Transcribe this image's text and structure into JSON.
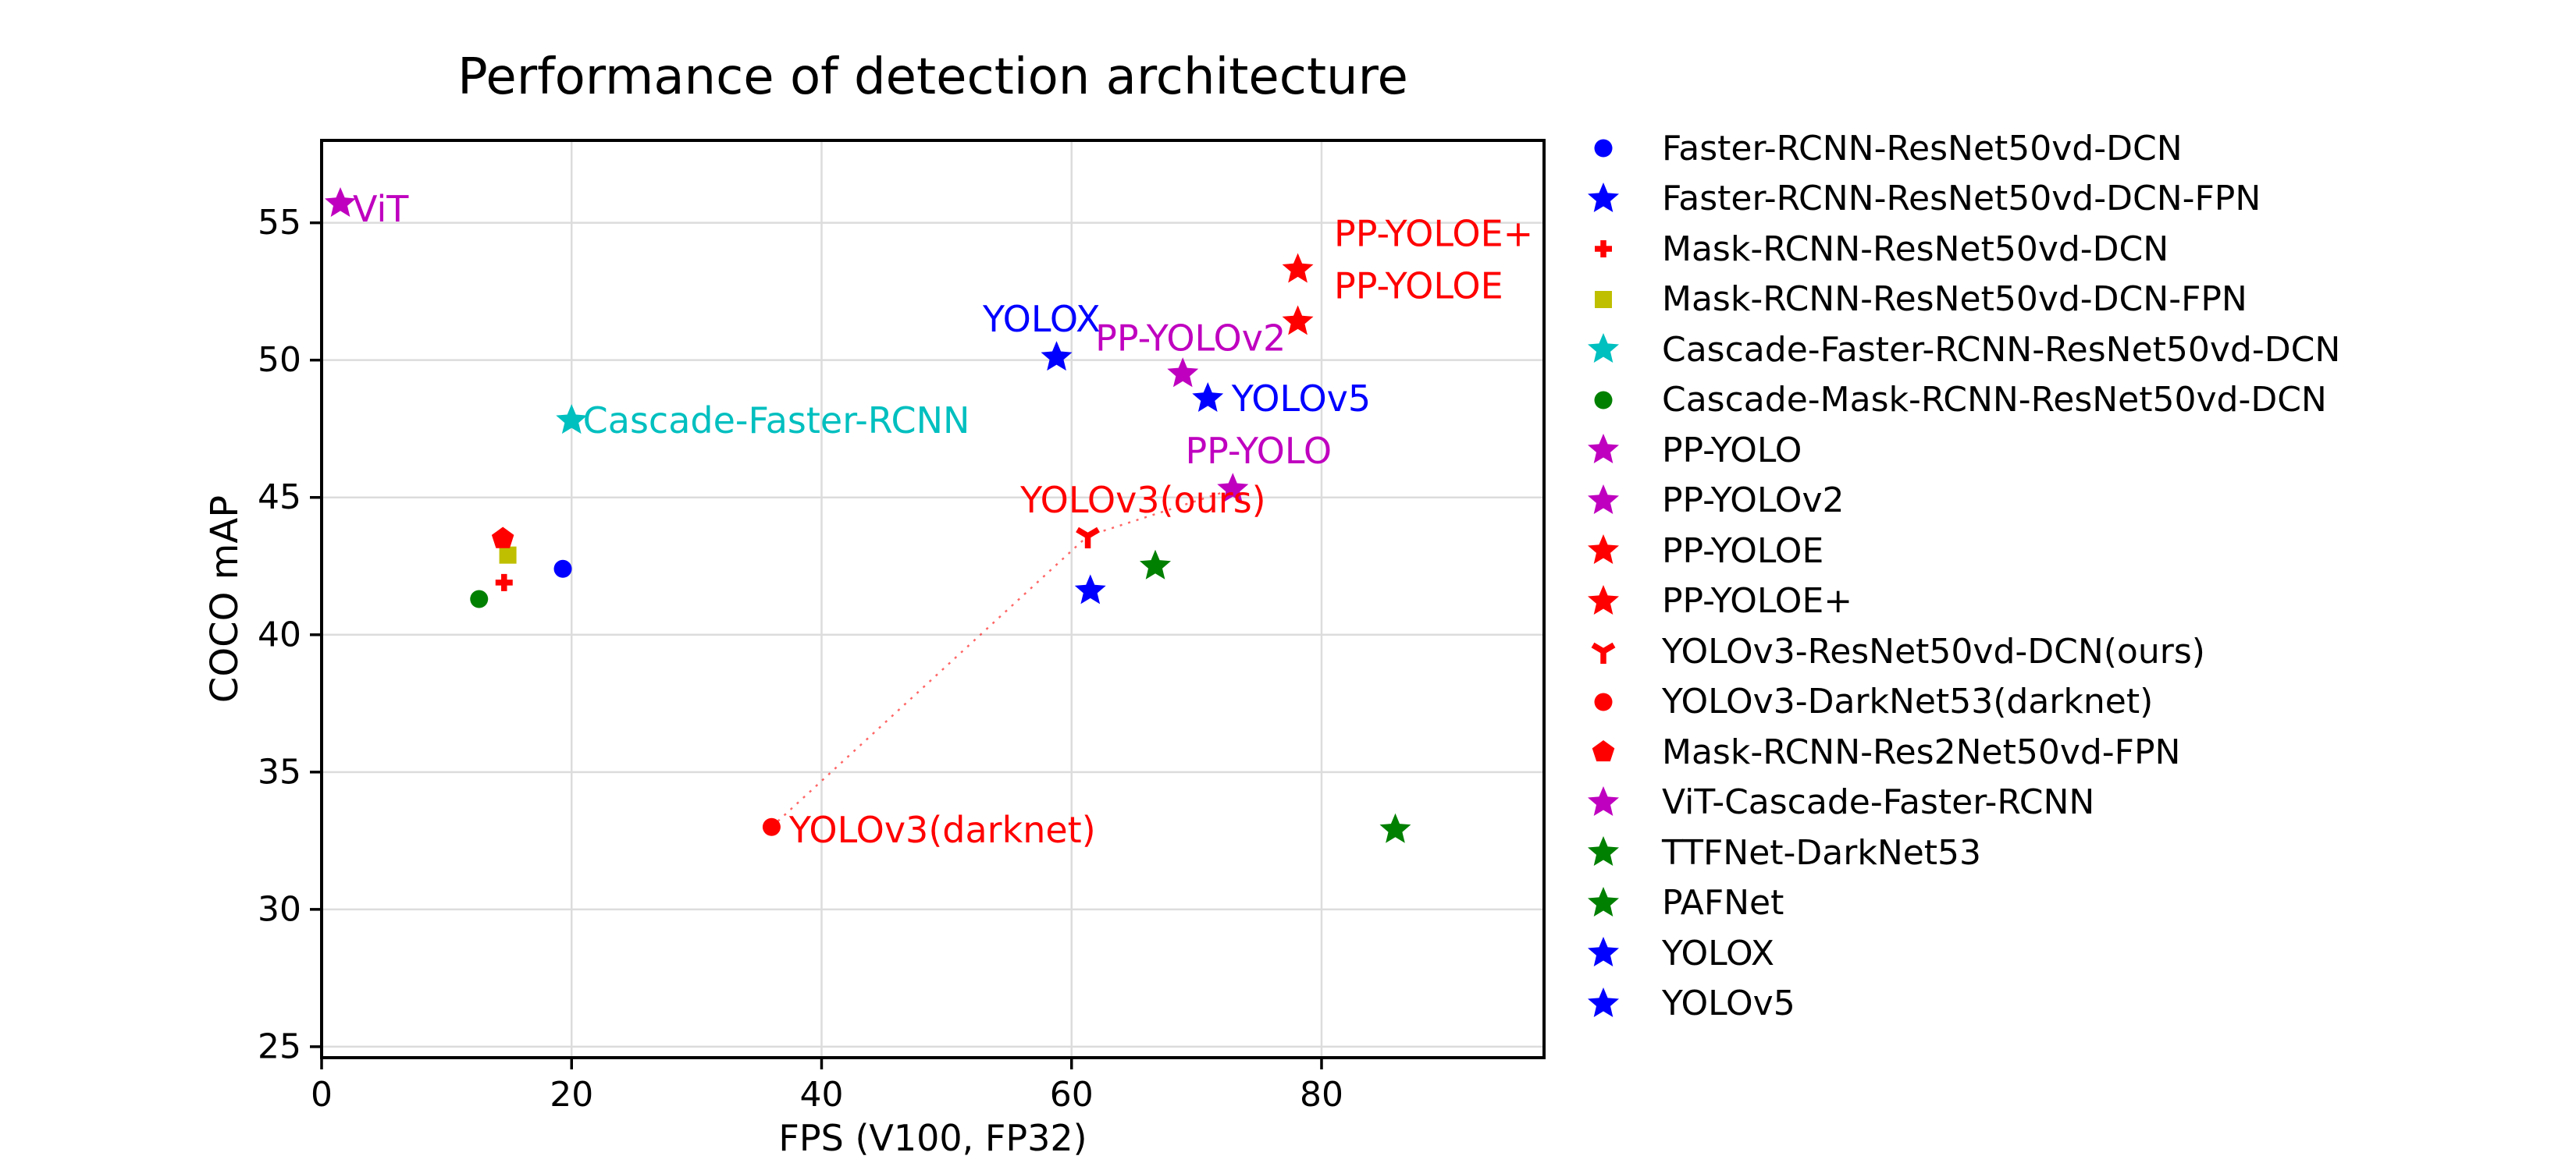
{
  "figure": {
    "title": "Performance of detection architecture",
    "xlabel": "FPS (V100, FP32)",
    "ylabel": "COCO mAP"
  },
  "palette": {
    "blue": "#0000FF",
    "red": "#FF0000",
    "magenta": "#BF00BF",
    "olive": "#BFBF00",
    "cyan": "#00BFBF",
    "green": "#008000",
    "grid": "#DCDCDC",
    "spine": "#000000"
  },
  "chart_data": {
    "type": "scatter",
    "title": "Performance of detection architecture",
    "xlabel": "FPS (V100, FP32)",
    "ylabel": "COCO mAP",
    "xlim": [
      0,
      97.8
    ],
    "ylim": [
      24.6,
      58
    ],
    "xticks": [
      0,
      20,
      40,
      60,
      80
    ],
    "yticks": [
      25,
      30,
      35,
      40,
      45,
      50,
      55
    ],
    "grid": true,
    "legend_position": "outside-right",
    "series": [
      {
        "name": "Faster-RCNN-ResNet50vd-DCN",
        "marker": "circle",
        "color": "#0000FF",
        "x": 19.3,
        "y": 42.4
      },
      {
        "name": "Faster-RCNN-ResNet50vd-DCN-FPN",
        "marker": "star",
        "color": "#0000FF",
        "x": 61.5,
        "y": 41.6
      },
      {
        "name": "Mask-RCNN-ResNet50vd-DCN",
        "marker": "plus",
        "color": "#FF0000",
        "x": 14.6,
        "y": 41.9
      },
      {
        "name": "Mask-RCNN-ResNet50vd-DCN-FPN",
        "marker": "square",
        "color": "#BFBF00",
        "x": 14.9,
        "y": 42.9
      },
      {
        "name": "Cascade-Faster-RCNN-ResNet50vd-DCN",
        "marker": "star",
        "color": "#00BFBF",
        "x": 20.0,
        "y": 47.8
      },
      {
        "name": "Cascade-Mask-RCNN-ResNet50vd-DCN",
        "marker": "circle",
        "color": "#008000",
        "x": 12.6,
        "y": 41.3
      },
      {
        "name": "PP-YOLO",
        "marker": "star",
        "color": "#BF00BF",
        "x": 72.9,
        "y": 45.3
      },
      {
        "name": "PP-YOLOv2",
        "marker": "star",
        "color": "#BF00BF",
        "x": 68.9,
        "y": 49.5
      },
      {
        "name": "PP-YOLOE",
        "marker": "star",
        "color": "#FF0000",
        "x": 78.1,
        "y": 51.4
      },
      {
        "name": "PP-YOLOE+",
        "marker": "star",
        "color": "#FF0000",
        "x": 78.1,
        "y": 53.3
      },
      {
        "name": "YOLOv3-ResNet50vd-DCN(ours)",
        "marker": "tri-down",
        "color": "#FF0000",
        "x": 61.3,
        "y": 43.6
      },
      {
        "name": "YOLOv3-DarkNet53(darknet)",
        "marker": "circle",
        "color": "#FF0000",
        "x": 36.0,
        "y": 33.0
      },
      {
        "name": "Mask-RCNN-Res2Net50vd-FPN",
        "marker": "pentagon",
        "color": "#FF0000",
        "x": 14.5,
        "y": 43.5
      },
      {
        "name": "ViT-Cascade-Faster-RCNN",
        "marker": "star",
        "color": "#BF00BF",
        "x": 1.5,
        "y": 55.7
      },
      {
        "name": "TTFNet-DarkNet53",
        "marker": "star",
        "color": "#008000",
        "x": 85.9,
        "y": 32.9
      },
      {
        "name": "PAFNet",
        "marker": "star",
        "color": "#008000",
        "x": 66.7,
        "y": 42.5
      },
      {
        "name": "YOLOX",
        "marker": "star",
        "color": "#0000FF",
        "x": 58.8,
        "y": 50.1
      },
      {
        "name": "YOLOv5",
        "marker": "star",
        "color": "#0000FF",
        "x": 70.9,
        "y": 48.6
      }
    ],
    "annotations": [
      {
        "text": "ViT",
        "x": 2.5,
        "y": 55.5,
        "color": "#BF00BF"
      },
      {
        "text": "Cascade-Faster-RCNN",
        "x": 20.9,
        "y": 47.8,
        "color": "#00BFBF"
      },
      {
        "text": "YOLOX",
        "x": 52.9,
        "y": 51.5,
        "color": "#0000FF"
      },
      {
        "text": "PP-YOLOv2",
        "x": 61.9,
        "y": 50.8,
        "color": "#BF00BF"
      },
      {
        "text": "YOLOv5",
        "x": 72.8,
        "y": 48.6,
        "color": "#0000FF"
      },
      {
        "text": "PP-YOLO",
        "x": 69.1,
        "y": 46.7,
        "color": "#BF00BF"
      },
      {
        "text": "YOLOv3(ours)",
        "x": 55.9,
        "y": 44.9,
        "color": "#FF0000"
      },
      {
        "text": "YOLOv3(darknet)",
        "x": 37.4,
        "y": 32.9,
        "color": "#FF0000"
      },
      {
        "text": "PP-YOLOE+",
        "x": 81.0,
        "y": 54.6,
        "color": "#FF0000"
      },
      {
        "text": "PP-YOLOE",
        "x": 81.0,
        "y": 52.7,
        "color": "#FF0000"
      }
    ],
    "trend_line": {
      "comment": "dotted red evolution line",
      "color": "#FF0000",
      "opacity": 0.6,
      "style": "dotted",
      "points": [
        [
          36.0,
          33.0
        ],
        [
          61.3,
          43.6
        ],
        [
          72.9,
          45.3
        ]
      ]
    }
  },
  "legend": {
    "entries": [
      {
        "label": "Faster-RCNN-ResNet50vd-DCN",
        "marker": "circle",
        "color": "#0000FF"
      },
      {
        "label": "Faster-RCNN-ResNet50vd-DCN-FPN",
        "marker": "star",
        "color": "#0000FF"
      },
      {
        "label": "Mask-RCNN-ResNet50vd-DCN",
        "marker": "plus",
        "color": "#FF0000"
      },
      {
        "label": "Mask-RCNN-ResNet50vd-DCN-FPN",
        "marker": "square",
        "color": "#BFBF00"
      },
      {
        "label": "Cascade-Faster-RCNN-ResNet50vd-DCN",
        "marker": "star",
        "color": "#00BFBF"
      },
      {
        "label": "Cascade-Mask-RCNN-ResNet50vd-DCN",
        "marker": "circle",
        "color": "#008000"
      },
      {
        "label": "PP-YOLO",
        "marker": "star",
        "color": "#BF00BF"
      },
      {
        "label": "PP-YOLOv2",
        "marker": "star",
        "color": "#BF00BF"
      },
      {
        "label": "PP-YOLOE",
        "marker": "star",
        "color": "#FF0000"
      },
      {
        "label": "PP-YOLOE+",
        "marker": "star",
        "color": "#FF0000"
      },
      {
        "label": "YOLOv3-ResNet50vd-DCN(ours)",
        "marker": "tri-down",
        "color": "#FF0000"
      },
      {
        "label": "YOLOv3-DarkNet53(darknet)",
        "marker": "circle",
        "color": "#FF0000"
      },
      {
        "label": "Mask-RCNN-Res2Net50vd-FPN",
        "marker": "pentagon",
        "color": "#FF0000"
      },
      {
        "label": "ViT-Cascade-Faster-RCNN",
        "marker": "star",
        "color": "#BF00BF"
      },
      {
        "label": "TTFNet-DarkNet53",
        "marker": "star",
        "color": "#008000"
      },
      {
        "label": "PAFNet",
        "marker": "star",
        "color": "#008000"
      },
      {
        "label": "YOLOX",
        "marker": "star",
        "color": "#0000FF"
      },
      {
        "label": "YOLOv5",
        "marker": "star",
        "color": "#0000FF"
      }
    ]
  }
}
